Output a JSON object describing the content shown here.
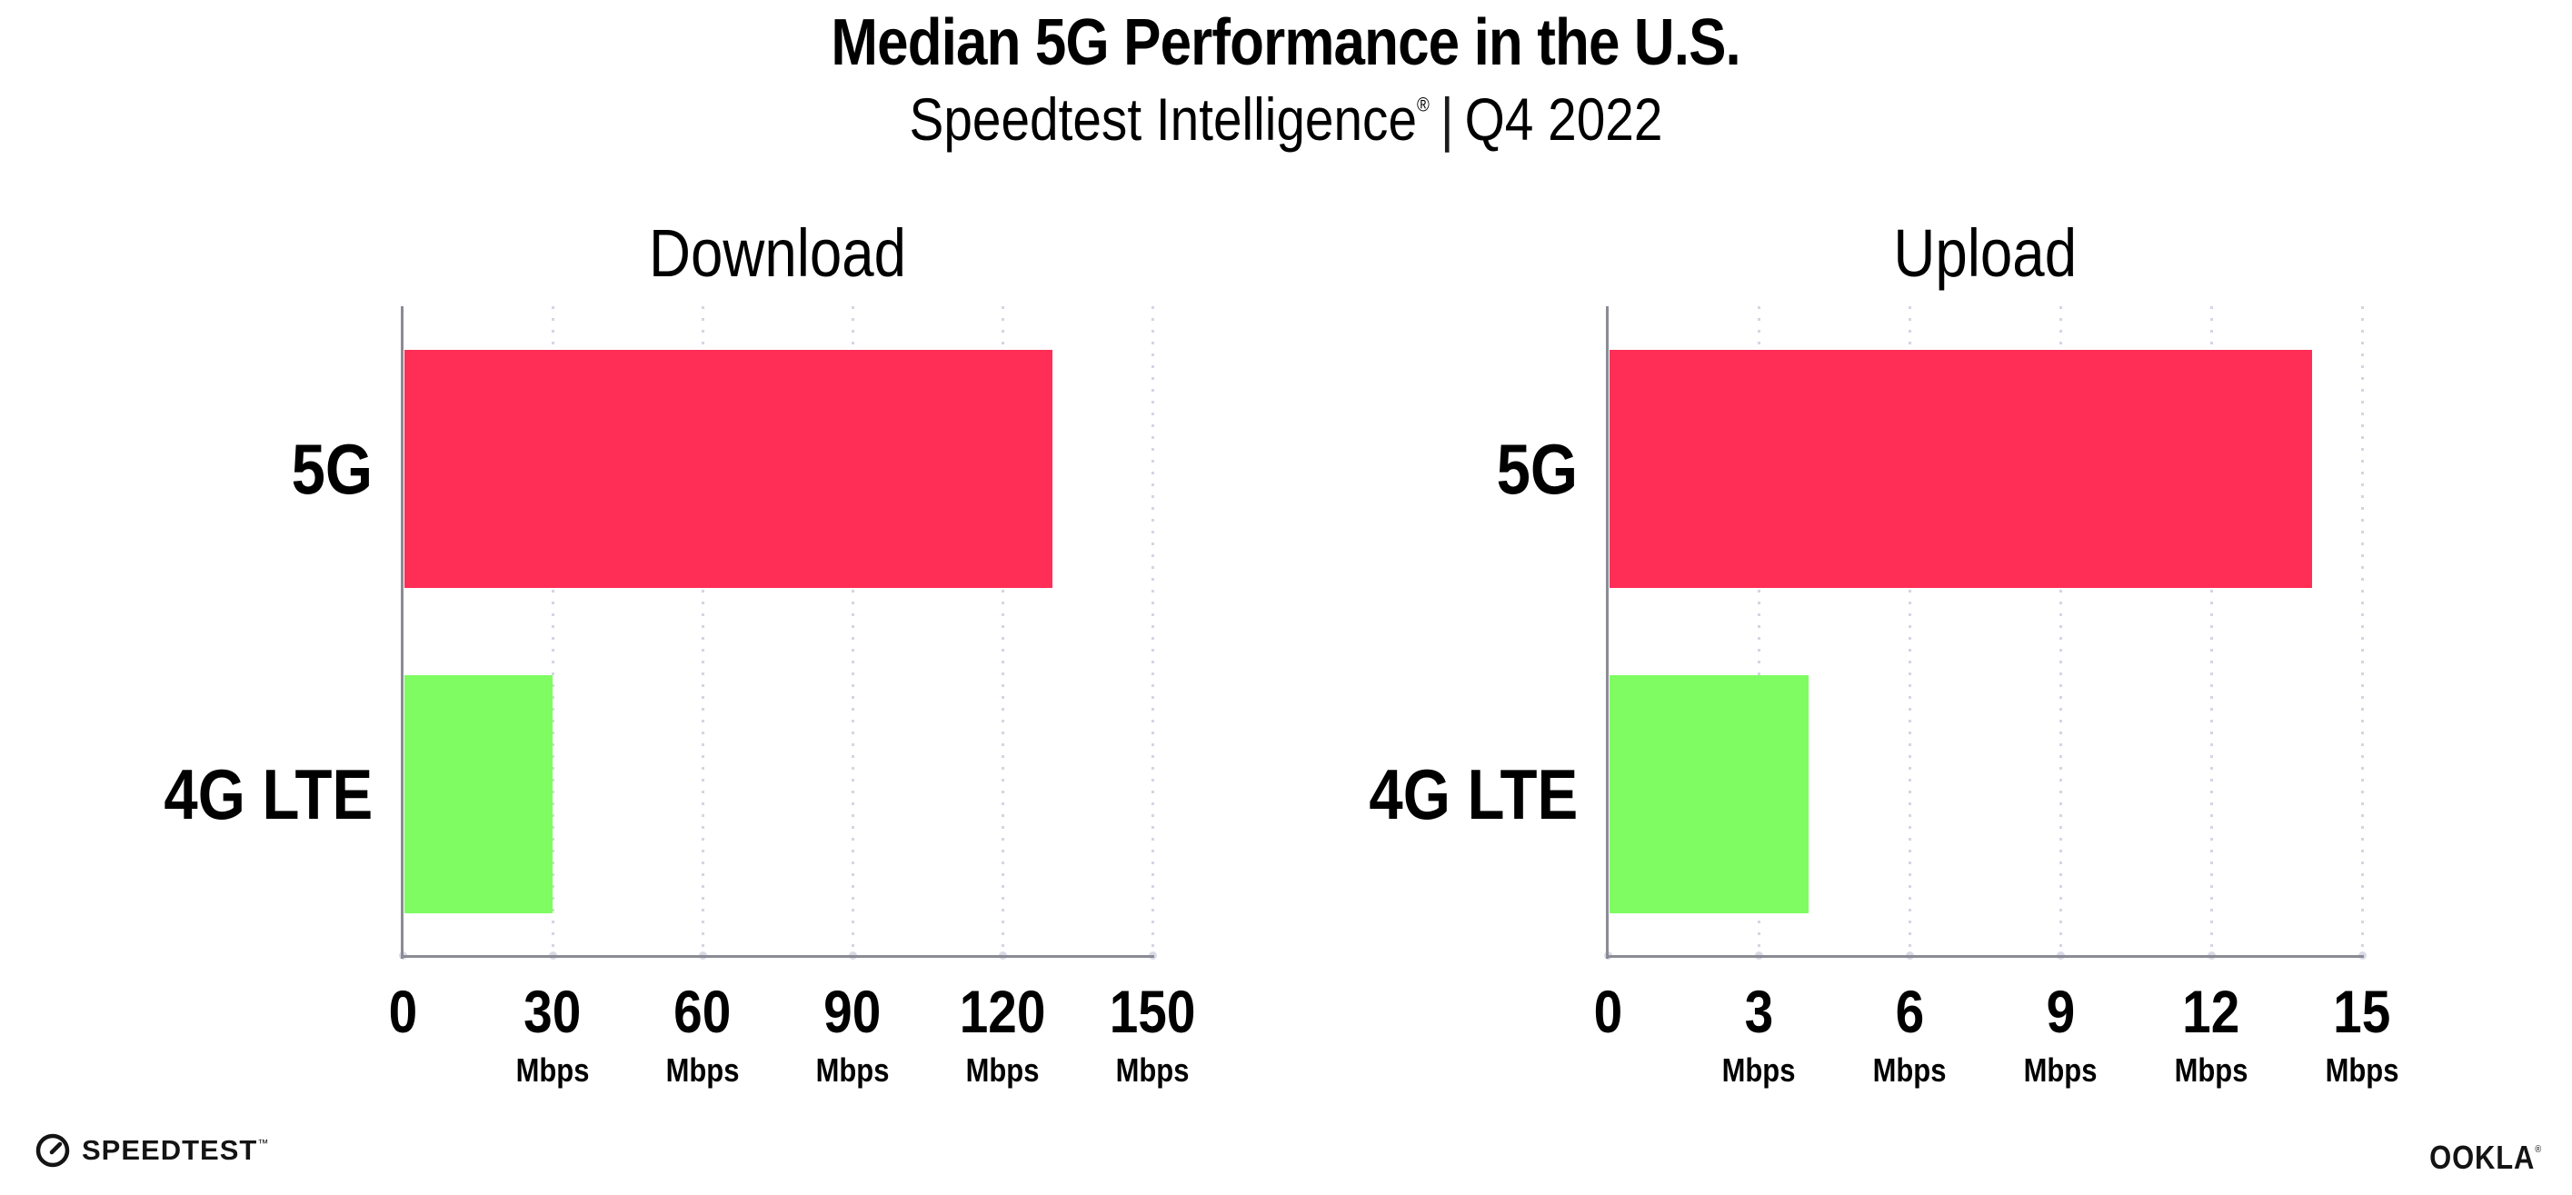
{
  "header": {
    "title": "Median 5G Performance in the U.S.",
    "subtitle_brand": "Speedtest Intelligence",
    "subtitle_reg": "®",
    "subtitle_separator": "|",
    "subtitle_period": "Q4 2022"
  },
  "chart_data": [
    {
      "type": "bar",
      "orientation": "horizontal",
      "title": "Download",
      "categories": [
        "5G",
        "4G LTE"
      ],
      "values": [
        130,
        30
      ],
      "unit": "Mbps",
      "xlim": [
        0,
        150
      ],
      "xticks": [
        0,
        30,
        60,
        90,
        120,
        150
      ],
      "grid": "dotted-vertical",
      "legend": "none",
      "bar_colors": [
        "#ff2e56",
        "#7ffc62"
      ]
    },
    {
      "type": "bar",
      "orientation": "horizontal",
      "title": "Upload",
      "categories": [
        "5G",
        "4G LTE"
      ],
      "values": [
        14,
        4
      ],
      "unit": "Mbps",
      "xlim": [
        0,
        15
      ],
      "xticks": [
        0,
        3,
        6,
        9,
        12,
        15
      ],
      "grid": "dotted-vertical",
      "legend": "none",
      "bar_colors": [
        "#ff2e56",
        "#7ffc62"
      ]
    }
  ],
  "colors": {
    "bar_5g": "#ff2e56",
    "bar_4g_lte": "#7ffc62",
    "axis": "#8b8b95",
    "gridline": "#d4d5e4",
    "tick_dot": "#d9dae6",
    "text": "#000000"
  },
  "footer": {
    "speedtest_label": "SPEEDTEST",
    "speedtest_mark": "™",
    "ookla_label": "OOKLA",
    "ookla_mark": "®"
  }
}
